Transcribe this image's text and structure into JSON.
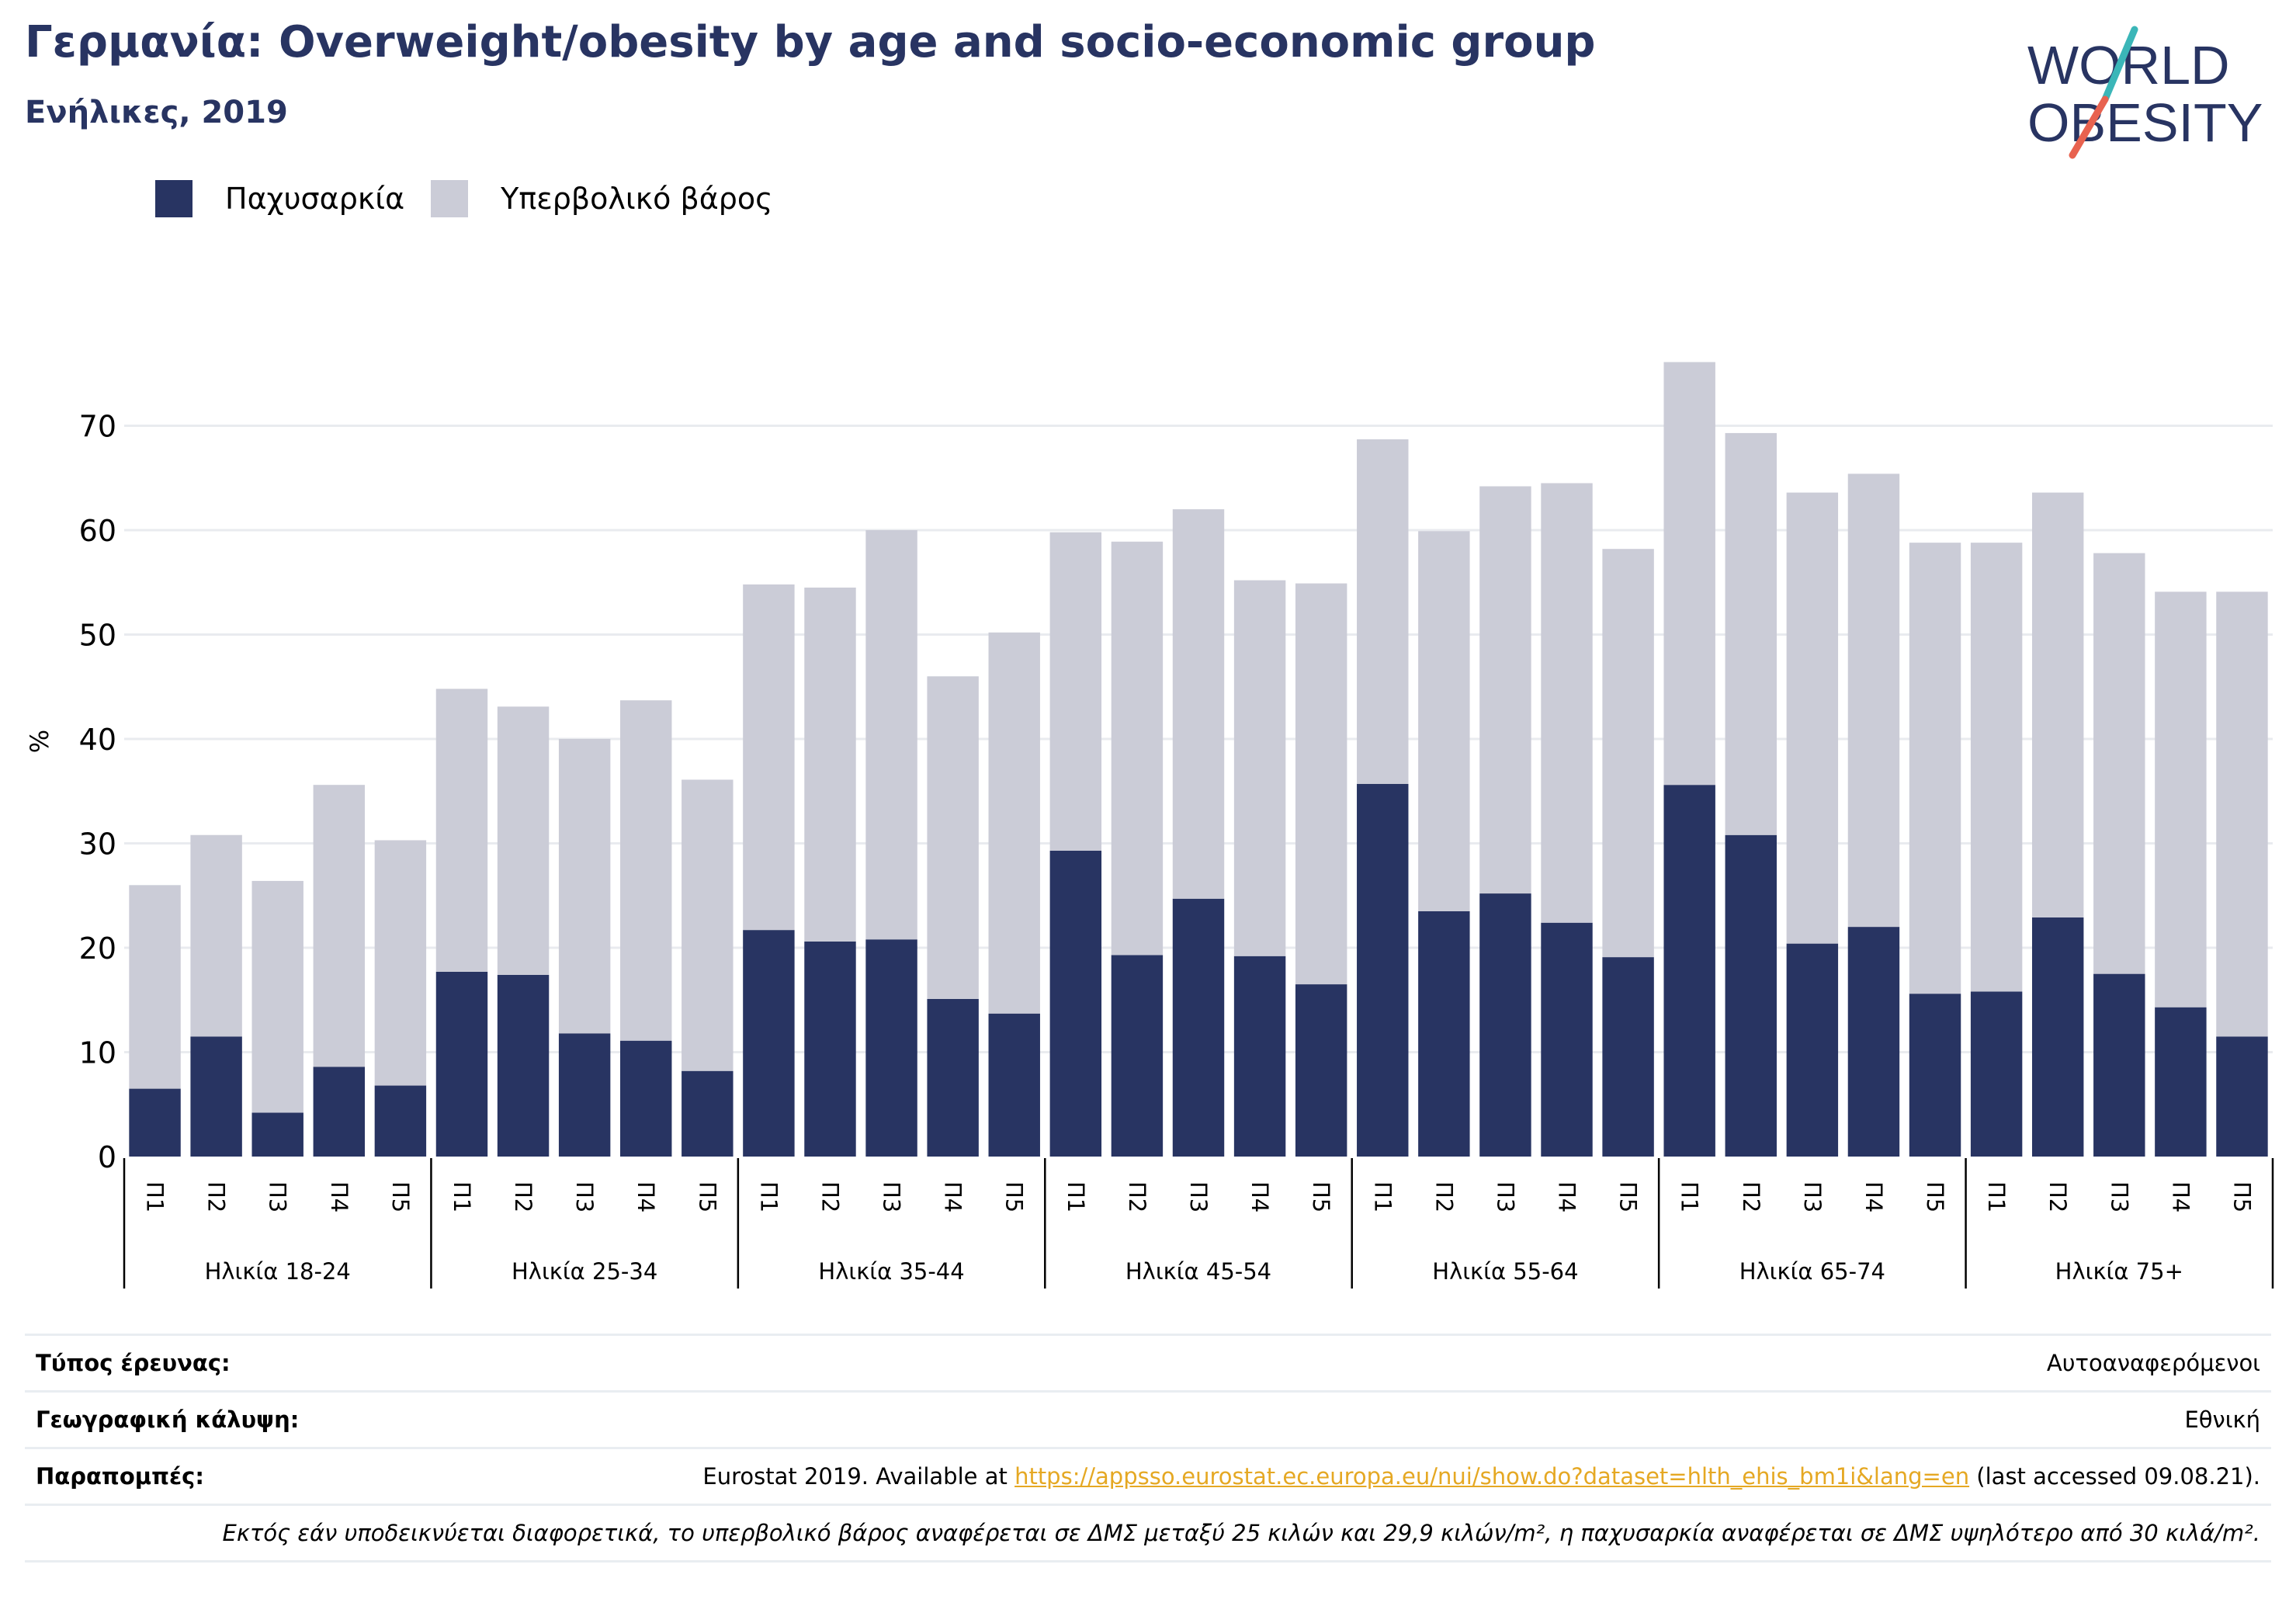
{
  "header": {
    "title": "Γερμανία: Overweight/obesity by age and socio-economic group",
    "subtitle": "Ενήλικες, 2019"
  },
  "logo": {
    "line1": "WORLD",
    "line2": "OBESITY",
    "accent_teal": "#3bb6b8",
    "accent_red": "#e8624f"
  },
  "legend": [
    {
      "label": "Παχυσαρκία",
      "color": "#283462"
    },
    {
      "label": "Υπερβολικό βάρος",
      "color": "#cbccd7"
    }
  ],
  "chart_data": {
    "type": "bar",
    "stacked": true,
    "ylabel": "%",
    "ylim": [
      0,
      80
    ],
    "yticks": [
      0,
      10,
      20,
      30,
      40,
      50,
      60,
      70
    ],
    "grid": true,
    "legend_position": "top-left",
    "sub_categories": [
      "Π1",
      "Π2",
      "Π3",
      "Π4",
      "Π5"
    ],
    "groups": [
      "Ηλικία 18-24",
      "Ηλικία 25-34",
      "Ηλικία 35-44",
      "Ηλικία 45-54",
      "Ηλικία 55-64",
      "Ηλικία 65-74",
      "Ηλικία 75+"
    ],
    "series": [
      {
        "name": "Παχυσαρκία",
        "color": "#283462",
        "values": [
          6.5,
          11.5,
          4.2,
          8.6,
          6.8,
          17.7,
          17.4,
          11.8,
          11.1,
          8.2,
          21.7,
          20.6,
          20.8,
          15.1,
          13.7,
          29.3,
          19.3,
          24.7,
          19.2,
          16.5,
          35.7,
          23.5,
          25.2,
          22.4,
          19.1,
          35.6,
          30.8,
          20.4,
          22.0,
          15.6,
          15.8,
          22.9,
          17.5,
          14.3,
          11.5
        ]
      },
      {
        "name": "Υπερβολικό βάρος",
        "color": "#cbccd7",
        "values": [
          19.5,
          19.3,
          22.2,
          27.0,
          23.5,
          27.1,
          25.7,
          28.2,
          32.6,
          27.9,
          33.1,
          33.9,
          39.2,
          30.9,
          36.5,
          30.5,
          39.6,
          37.3,
          36.0,
          38.4,
          33.0,
          36.4,
          39.0,
          42.1,
          39.1,
          40.5,
          38.5,
          43.2,
          43.4,
          43.2,
          43.0,
          40.7,
          40.3,
          39.8,
          42.6
        ]
      }
    ]
  },
  "info": {
    "rows": [
      {
        "label": "Τύπος έρευνας:",
        "value": "Αυτοαναφερόμενοι"
      },
      {
        "label": "Γεωγραφική κάλυψη:",
        "value": "Εθνική"
      }
    ],
    "references": {
      "label": "Παραπομπές:",
      "before": "Eurostat 2019. Available at ",
      "link": "https://appsso.eurostat.ec.europa.eu/nui/show.do?dataset=hlth_ehis_bm1i&lang=en",
      "after": " (last accessed 09.08.21)."
    },
    "note": "Εκτός εάν υποδεικνύεται διαφορετικά, το υπερβολικό βάρος αναφέρεται σε ΔΜΣ μεταξύ 25 κιλών και 29,9 κιλών/m², η παχυσαρκία αναφέρεται σε ΔΜΣ υψηλότερο από 30 κιλά/m²."
  }
}
